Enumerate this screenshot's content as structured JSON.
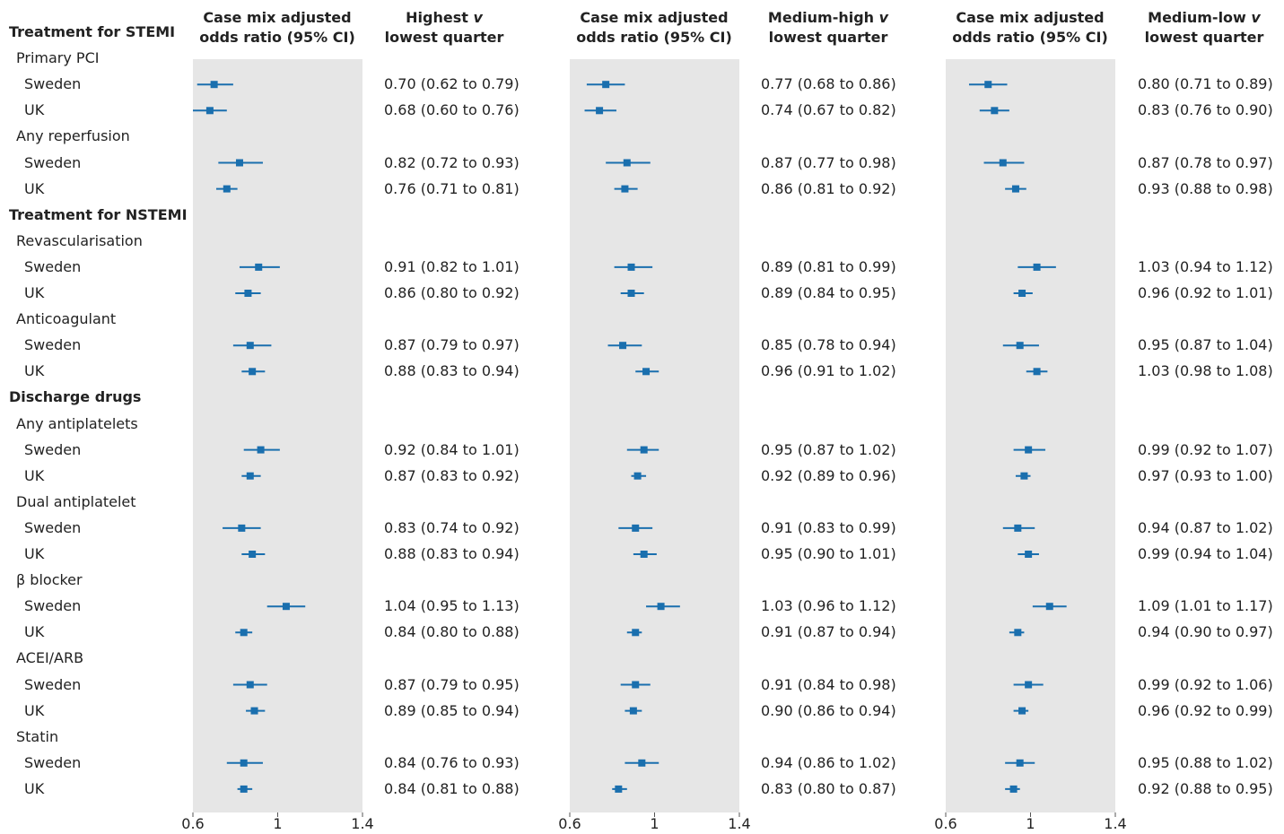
{
  "headers": {
    "plot": "Case mix adjusted odds ratio (95% CI)",
    "cmp": [
      {
        "pre": "Highest ",
        "v": "v",
        "post": "lowest quarter"
      },
      {
        "pre": "Medium-high ",
        "v": "v",
        "post": "lowest quarter"
      },
      {
        "pre": "Medium-low ",
        "v": "v",
        "post": "lowest quarter"
      }
    ]
  },
  "colors": {
    "marker": "#1a6fae",
    "panel": "#e6e6e6"
  },
  "rows": [
    {
      "label": "Treatment for STEMI",
      "kind": "section"
    },
    {
      "label": "Primary PCI",
      "kind": "group"
    },
    {
      "label": "Sweden",
      "kind": "item"
    },
    {
      "label": "UK",
      "kind": "item"
    },
    {
      "label": "Any reperfusion",
      "kind": "group"
    },
    {
      "label": "Sweden",
      "kind": "item"
    },
    {
      "label": "UK",
      "kind": "item"
    },
    {
      "label": "Treatment for NSTEMI",
      "kind": "section"
    },
    {
      "label": "Revascularisation",
      "kind": "group"
    },
    {
      "label": "Sweden",
      "kind": "item"
    },
    {
      "label": "UK",
      "kind": "item"
    },
    {
      "label": "Anticoagulant",
      "kind": "group"
    },
    {
      "label": "Sweden",
      "kind": "item"
    },
    {
      "label": "UK",
      "kind": "item"
    },
    {
      "label": "Discharge drugs",
      "kind": "section"
    },
    {
      "label": "Any antiplatelets",
      "kind": "group"
    },
    {
      "label": "Sweden",
      "kind": "item"
    },
    {
      "label": "UK",
      "kind": "item"
    },
    {
      "label": "Dual antiplatelet",
      "kind": "group"
    },
    {
      "label": "Sweden",
      "kind": "item"
    },
    {
      "label": "UK",
      "kind": "item"
    },
    {
      "label": "β blocker",
      "kind": "group"
    },
    {
      "label": "Sweden",
      "kind": "item"
    },
    {
      "label": "UK",
      "kind": "item"
    },
    {
      "label": "ACEI/ARB",
      "kind": "group"
    },
    {
      "label": "Sweden",
      "kind": "item"
    },
    {
      "label": "UK",
      "kind": "item"
    },
    {
      "label": "Statin",
      "kind": "group"
    },
    {
      "label": "Sweden",
      "kind": "item"
    },
    {
      "label": "UK",
      "kind": "item"
    }
  ],
  "chart_data": [
    {
      "type": "forest",
      "axis": {
        "min": 0.6,
        "max": 1.4,
        "ticks": [
          "0.6",
          "1",
          "1.4"
        ]
      },
      "estimates": [
        [
          0.7,
          0.62,
          0.79
        ],
        [
          0.68,
          0.6,
          0.76
        ],
        [
          0.82,
          0.72,
          0.93
        ],
        [
          0.76,
          0.71,
          0.81
        ],
        [
          0.91,
          0.82,
          1.01
        ],
        [
          0.86,
          0.8,
          0.92
        ],
        [
          0.87,
          0.79,
          0.97
        ],
        [
          0.88,
          0.83,
          0.94
        ],
        [
          0.92,
          0.84,
          1.01
        ],
        [
          0.87,
          0.83,
          0.92
        ],
        [
          0.83,
          0.74,
          0.92
        ],
        [
          0.88,
          0.83,
          0.94
        ],
        [
          1.04,
          0.95,
          1.13
        ],
        [
          0.84,
          0.8,
          0.88
        ],
        [
          0.87,
          0.79,
          0.95
        ],
        [
          0.89,
          0.85,
          0.94
        ],
        [
          0.84,
          0.76,
          0.93
        ],
        [
          0.84,
          0.81,
          0.88
        ]
      ],
      "labels": [
        "0.70 (0.62 to 0.79)",
        "0.68 (0.60 to 0.76)",
        "0.82 (0.72 to 0.93)",
        "0.76 (0.71 to 0.81)",
        "0.91 (0.82 to 1.01)",
        "0.86 (0.80 to 0.92)",
        "0.87 (0.79 to 0.97)",
        "0.88 (0.83 to 0.94)",
        "0.92 (0.84 to 1.01)",
        "0.87 (0.83 to 0.92)",
        "0.83 (0.74 to 0.92)",
        "0.88 (0.83 to 0.94)",
        "1.04 (0.95 to 1.13)",
        "0.84 (0.80 to 0.88)",
        "0.87 (0.79 to 0.95)",
        "0.89 (0.85 to 0.94)",
        "0.84 (0.76 to 0.93)",
        "0.84 (0.81 to 0.88)"
      ]
    },
    {
      "type": "forest",
      "axis": {
        "min": 0.6,
        "max": 1.4,
        "ticks": [
          "0.6",
          "1",
          "1.4"
        ]
      },
      "estimates": [
        [
          0.77,
          0.68,
          0.86
        ],
        [
          0.74,
          0.67,
          0.82
        ],
        [
          0.87,
          0.77,
          0.98
        ],
        [
          0.86,
          0.81,
          0.92
        ],
        [
          0.89,
          0.81,
          0.99
        ],
        [
          0.89,
          0.84,
          0.95
        ],
        [
          0.85,
          0.78,
          0.94
        ],
        [
          0.96,
          0.91,
          1.02
        ],
        [
          0.95,
          0.87,
          1.02
        ],
        [
          0.92,
          0.89,
          0.96
        ],
        [
          0.91,
          0.83,
          0.99
        ],
        [
          0.95,
          0.9,
          1.01
        ],
        [
          1.03,
          0.96,
          1.12
        ],
        [
          0.91,
          0.87,
          0.94
        ],
        [
          0.91,
          0.84,
          0.98
        ],
        [
          0.9,
          0.86,
          0.94
        ],
        [
          0.94,
          0.86,
          1.02
        ],
        [
          0.83,
          0.8,
          0.87
        ]
      ],
      "labels": [
        "0.77 (0.68 to 0.86)",
        "0.74 (0.67 to 0.82)",
        "0.87 (0.77 to 0.98)",
        "0.86 (0.81 to 0.92)",
        "0.89 (0.81 to 0.99)",
        "0.89 (0.84 to 0.95)",
        "0.85 (0.78 to 0.94)",
        "0.96 (0.91 to 1.02)",
        "0.95 (0.87 to 1.02)",
        "0.92 (0.89 to 0.96)",
        "0.91 (0.83 to 0.99)",
        "0.95 (0.90 to 1.01)",
        "1.03 (0.96 to 1.12)",
        "0.91 (0.87 to 0.94)",
        "0.91 (0.84 to 0.98)",
        "0.90 (0.86 to 0.94)",
        "0.94 (0.86 to 1.02)",
        "0.83 (0.80 to 0.87)"
      ]
    },
    {
      "type": "forest",
      "axis": {
        "min": 0.6,
        "max": 1.4,
        "ticks": [
          "0.6",
          "1",
          "1.4"
        ]
      },
      "estimates": [
        [
          0.8,
          0.71,
          0.89
        ],
        [
          0.83,
          0.76,
          0.9
        ],
        [
          0.87,
          0.78,
          0.97
        ],
        [
          0.93,
          0.88,
          0.98
        ],
        [
          1.03,
          0.94,
          1.12
        ],
        [
          0.96,
          0.92,
          1.01
        ],
        [
          0.95,
          0.87,
          1.04
        ],
        [
          1.03,
          0.98,
          1.08
        ],
        [
          0.99,
          0.92,
          1.07
        ],
        [
          0.97,
          0.93,
          1.0
        ],
        [
          0.94,
          0.87,
          1.02
        ],
        [
          0.99,
          0.94,
          1.04
        ],
        [
          1.09,
          1.01,
          1.17
        ],
        [
          0.94,
          0.9,
          0.97
        ],
        [
          0.99,
          0.92,
          1.06
        ],
        [
          0.96,
          0.92,
          0.99
        ],
        [
          0.95,
          0.88,
          1.02
        ],
        [
          0.92,
          0.88,
          0.95
        ]
      ],
      "labels": [
        "0.80 (0.71 to 0.89)",
        "0.83 (0.76 to 0.90)",
        "0.87 (0.78 to 0.97)",
        "0.93 (0.88 to 0.98)",
        "1.03 (0.94 to 1.12)",
        "0.96 (0.92 to 1.01)",
        "0.95 (0.87 to 1.04)",
        "1.03 (0.98 to 1.08)",
        "0.99 (0.92 to 1.07)",
        "0.97 (0.93 to 1.00)",
        "0.94 (0.87 to 1.02)",
        "0.99 (0.94 to 1.04)",
        "1.09 (1.01 to 1.17)",
        "0.94 (0.90 to 0.97)",
        "0.99 (0.92 to 1.06)",
        "0.96 (0.92 to 0.99)",
        "0.95 (0.88 to 1.02)",
        "0.92 (0.88 to 0.95)"
      ]
    }
  ]
}
